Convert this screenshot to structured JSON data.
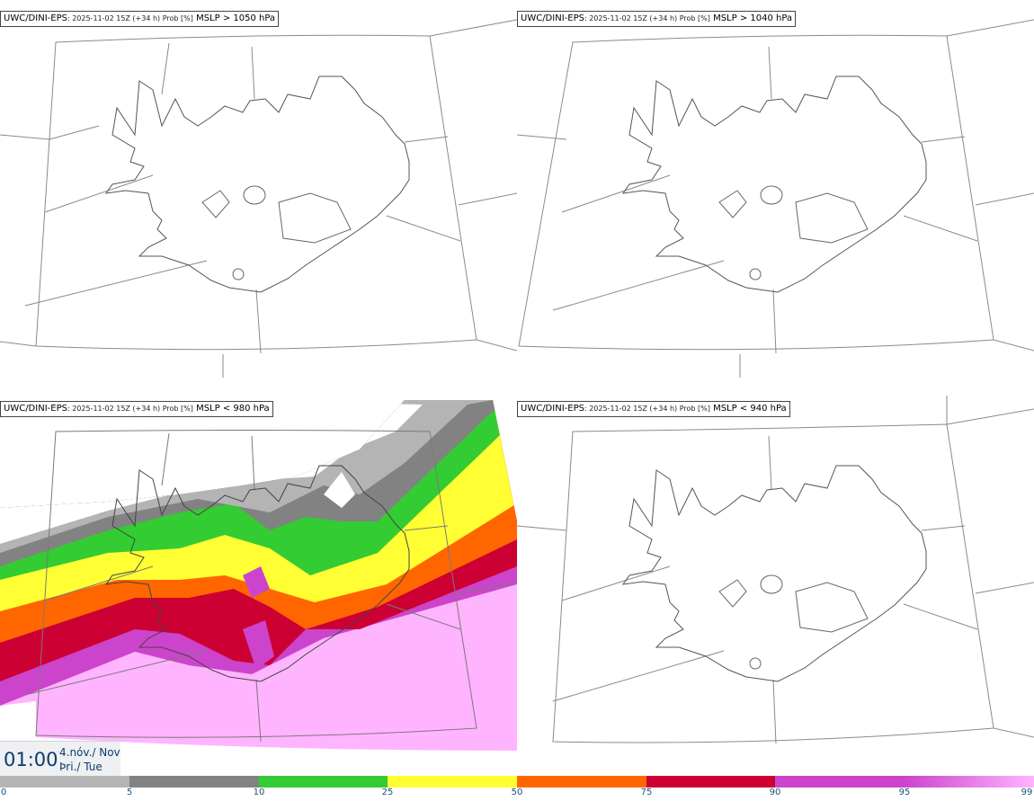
{
  "panels": [
    {
      "model": "UWC/DINI-EPS",
      "meta": ": 2025-11-02 15Z (+34 h) Prob [%]",
      "threshold": "MSLP > 1050 hPa"
    },
    {
      "model": "UWC/DINI-EPS",
      "meta": ": 2025-11-02 15Z (+34 h) Prob [%]",
      "threshold": "MSLP > 1040 hPa"
    },
    {
      "model": "UWC/DINI-EPS",
      "meta": ": 2025-11-02 15Z (+34 h) Prob [%]",
      "threshold": "MSLP < 980 hPa"
    },
    {
      "model": "UWC/DINI-EPS",
      "meta": ": 2025-11-02 15Z (+34 h) Prob [%]",
      "threshold": "MSLP < 940 hPa"
    }
  ],
  "valid_time": {
    "time": "01:00",
    "date_line1": "4.nóv./ Nov",
    "date_line2": "Þri./ Tue"
  },
  "legend": {
    "labels": [
      "0",
      "5",
      "10",
      "25",
      "50",
      "75",
      "90",
      "95",
      "99"
    ],
    "colors": [
      "#ffffff",
      "#b4b4b4",
      "#828282",
      "#33cc33",
      "#ffff33",
      "#ff6600",
      "#cc0033",
      "#cc44cc",
      "#ffb4ff"
    ]
  }
}
